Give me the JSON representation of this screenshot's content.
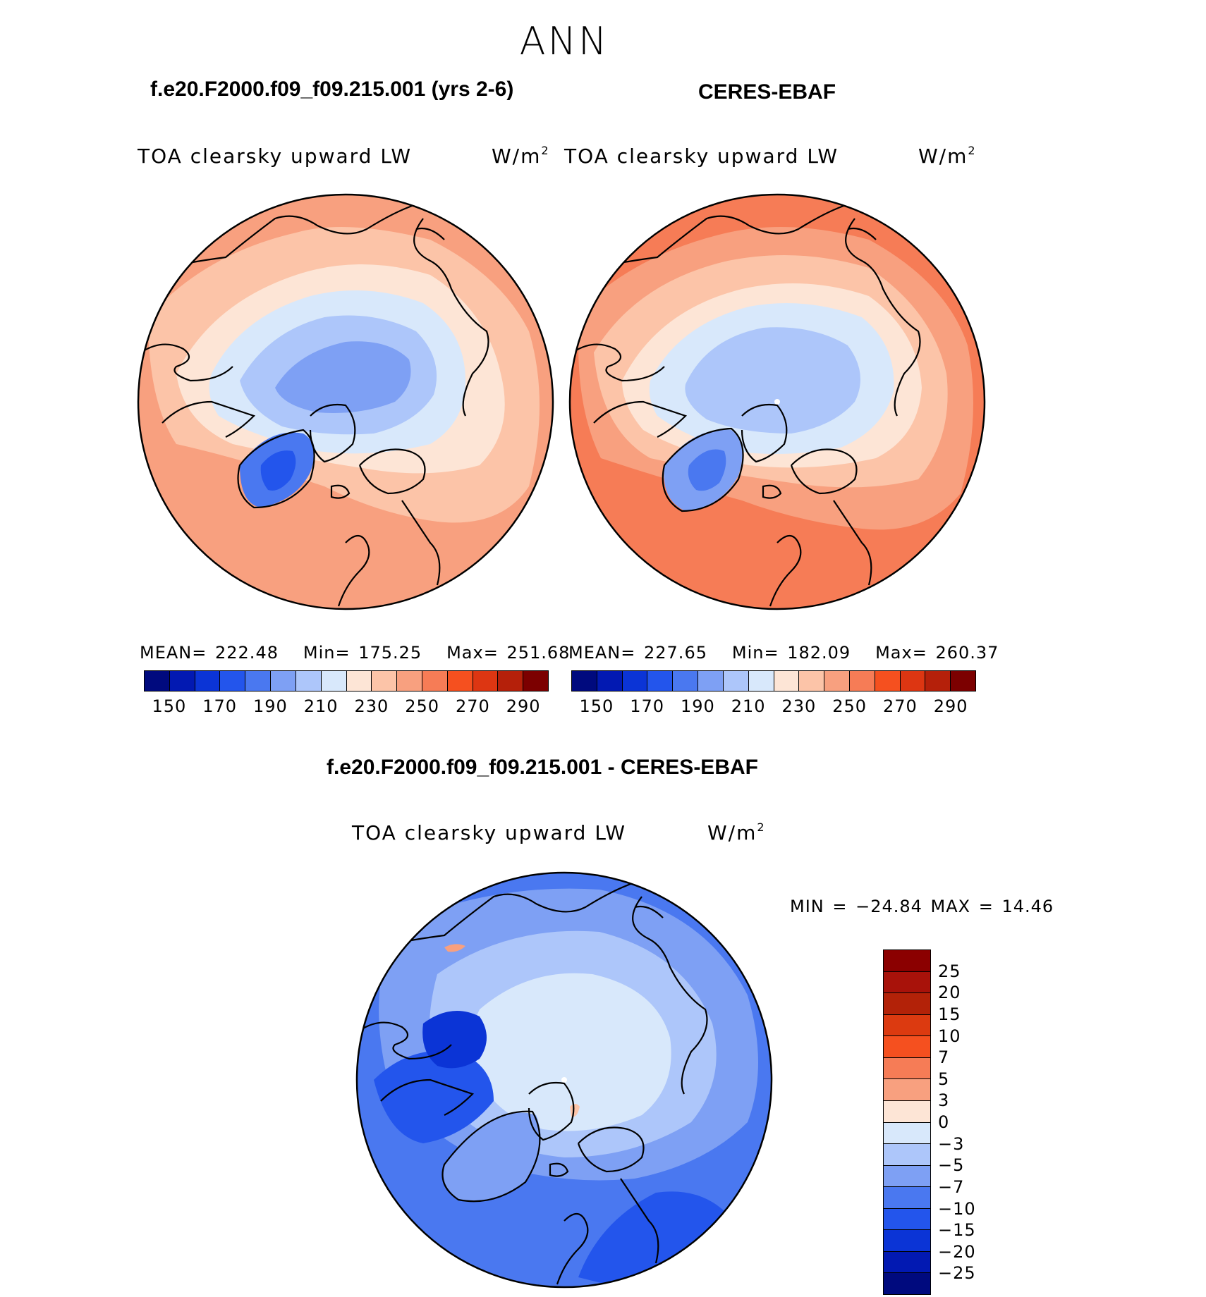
{
  "page": {
    "season": "ANN"
  },
  "top_left": {
    "case_title": "f.e20.F2000.f09_f09.215.001 (yrs 2-6)",
    "variable": "TOA clearsky upward LW",
    "units_base": "W/m",
    "units_exp": "2",
    "mean_label": "MEAN=",
    "mean_value": "222.48",
    "min_label": "Min=",
    "min_value": "175.25",
    "max_label": "Max=",
    "max_value": "251.68"
  },
  "top_right": {
    "case_title": "CERES-EBAF",
    "variable": "TOA clearsky upward LW",
    "units_base": "W/m",
    "units_exp": "2",
    "mean_label": "MEAN=",
    "mean_value": "227.65",
    "min_label": "Min=",
    "min_value": "182.09",
    "max_label": "Max=",
    "max_value": "260.37"
  },
  "difference": {
    "case_title": "f.e20.F2000.f09_f09.215.001 - CERES-EBAF",
    "variable": "TOA clearsky upward LW",
    "units_base": "W/m",
    "units_exp": "2",
    "minmax_text": "MIN = −24.84 MAX =  14.46"
  },
  "abs_colorbar": {
    "colors": [
      "#000a7e",
      "#0219b2",
      "#0b34d6",
      "#2355ec",
      "#4a78f0",
      "#7ea0f4",
      "#adc6fa",
      "#d8e8fb",
      "#fde5d6",
      "#fcc4a8",
      "#f8a07f",
      "#f67c56",
      "#f5501f",
      "#dd3612",
      "#b5200a",
      "#7c0000"
    ],
    "tick_labels": [
      "150",
      "170",
      "190",
      "210",
      "230",
      "250",
      "270",
      "290"
    ]
  },
  "diff_colorbar": {
    "colors": [
      "#8b0000",
      "#b32208",
      "#dc3a10",
      "#f5501f",
      "#f67c56",
      "#f8a07f",
      "#fde5d6",
      "#d8e8fb",
      "#adc6fa",
      "#7ea0f4",
      "#4a78f0",
      "#2355ec",
      "#0b34d6",
      "#0219b2",
      "#000a7e"
    ],
    "tick_labels": [
      "25",
      "20",
      "15",
      "10",
      "7",
      "5",
      "3",
      "0",
      "−3",
      "−5",
      "−7",
      "−10",
      "−15",
      "−20",
      "−25"
    ]
  },
  "chart_data": [
    {
      "type": "map",
      "projection": "north polar stereographic",
      "title": "f.e20.F2000.f09_f09.215.001 (yrs 2-6)",
      "variable": "TOA clearsky upward LW",
      "units": "W/m^2",
      "mean": 222.48,
      "min": 175.25,
      "max": 251.68,
      "contour_levels": [
        150,
        160,
        170,
        180,
        190,
        200,
        210,
        220,
        230,
        240,
        250,
        260,
        270,
        280,
        290
      ]
    },
    {
      "type": "map",
      "projection": "north polar stereographic",
      "title": "CERES-EBAF",
      "variable": "TOA clearsky upward LW",
      "units": "W/m^2",
      "mean": 227.65,
      "min": 182.09,
      "max": 260.37,
      "contour_levels": [
        150,
        160,
        170,
        180,
        190,
        200,
        210,
        220,
        230,
        240,
        250,
        260,
        270,
        280,
        290
      ]
    },
    {
      "type": "map",
      "projection": "north polar stereographic",
      "title": "f.e20.F2000.f09_f09.215.001 - CERES-EBAF",
      "variable": "TOA clearsky upward LW",
      "units": "W/m^2",
      "min": -24.84,
      "max": 14.46,
      "contour_levels": [
        -25,
        -20,
        -15,
        -10,
        -7,
        -5,
        -3,
        0,
        3,
        5,
        7,
        10,
        15,
        20,
        25
      ]
    }
  ]
}
